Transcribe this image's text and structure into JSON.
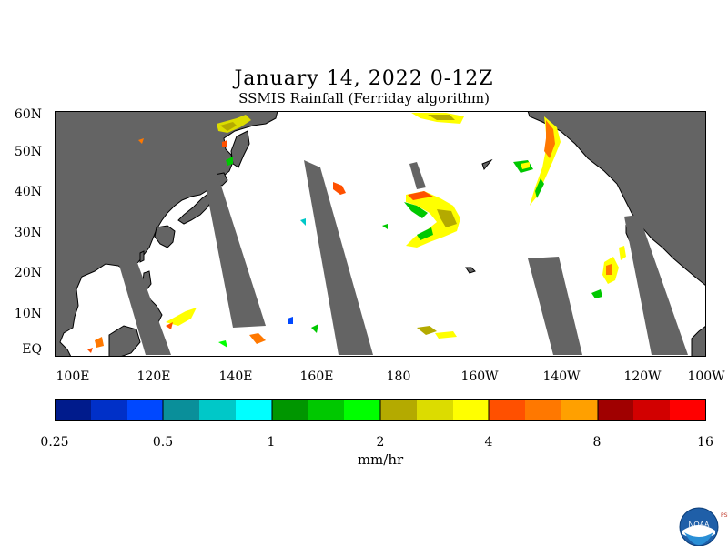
{
  "header": {
    "title": "January 14, 2022 0-12Z",
    "subtitle": "SSMIS Rainfall (Ferriday algorithm)"
  },
  "map": {
    "lat_labels": [
      "60N",
      "50N",
      "40N",
      "30N",
      "20N",
      "10N",
      "EQ"
    ],
    "lon_labels": [
      "100E",
      "120E",
      "140E",
      "160E",
      "180",
      "160W",
      "140W",
      "120W",
      "100W"
    ],
    "colors": {
      "land": "#646464",
      "ocean": "#ffffff",
      "coast": "#000000"
    }
  },
  "colorbar": {
    "colors": [
      "#001b8c",
      "#0030c8",
      "#0048ff",
      "#0a8f9a",
      "#00c8c8",
      "#00ffff",
      "#009600",
      "#00c800",
      "#00ff00",
      "#b4aa00",
      "#dcdc00",
      "#ffff00",
      "#ff5000",
      "#ff7800",
      "#ffa000",
      "#a00000",
      "#d20000",
      "#ff0000"
    ],
    "tick_labels": [
      "0.25",
      "0.5",
      "1",
      "2",
      "4",
      "8",
      "16"
    ],
    "units": "mm/hr"
  },
  "logo": {
    "name": "noaa-logo",
    "text": "NOAA",
    "side_text": "PSL"
  }
}
